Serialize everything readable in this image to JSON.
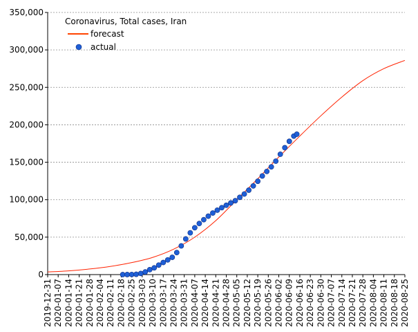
{
  "chart_data": {
    "type": "line",
    "title": "Coronavirus, Total cases, Iran",
    "xlabel": "",
    "ylabel": "",
    "x_start": "2019-12-31",
    "x_end": "2020-08-25",
    "ylim": [
      0,
      350000
    ],
    "grid": true,
    "legend_position": "top-left",
    "x_tick_labels": [
      "2019-12-31",
      "2020-01-07",
      "2020-01-14",
      "2020-01-21",
      "2020-01-28",
      "2020-02-04",
      "2020-02-11",
      "2020-02-18",
      "2020-02-25",
      "2020-03-03",
      "2020-03-10",
      "2020-03-17",
      "2020-03-24",
      "2020-03-31",
      "2020-04-07",
      "2020-04-14",
      "2020-04-21",
      "2020-04-28",
      "2020-05-05",
      "2020-05-12",
      "2020-05-19",
      "2020-05-26",
      "2020-06-02",
      "2020-06-09",
      "2020-06-16",
      "2020-06-23",
      "2020-06-30",
      "2020-07-07",
      "2020-07-14",
      "2020-07-21",
      "2020-07-28",
      "2020-08-04",
      "2020-08-11",
      "2020-08-18",
      "2020-08-25"
    ],
    "y_tick_labels": [
      "0",
      "50,000",
      "100,000",
      "150,000",
      "200,000",
      "250,000",
      "300,000",
      "350,000"
    ],
    "series": [
      {
        "name": "forecast",
        "color": "#ff2200",
        "style": "line",
        "x": [
          "2019-12-31",
          "2020-01-14",
          "2020-01-28",
          "2020-02-11",
          "2020-02-25",
          "2020-03-10",
          "2020-03-24",
          "2020-04-07",
          "2020-04-21",
          "2020-05-05",
          "2020-05-19",
          "2020-06-02",
          "2020-06-16",
          "2020-06-30",
          "2020-07-14",
          "2020-07-28",
          "2020-08-11",
          "2020-08-25"
        ],
        "values": [
          3500,
          5000,
          7500,
          11000,
          16000,
          23000,
          34000,
          50000,
          72000,
          100000,
          128000,
          157000,
          185000,
          212000,
          237000,
          259000,
          275000,
          286000
        ]
      },
      {
        "name": "actual",
        "color": "#1f5fd6",
        "style": "markers",
        "x": [
          "2020-02-19",
          "2020-02-22",
          "2020-02-25",
          "2020-02-28",
          "2020-03-02",
          "2020-03-05",
          "2020-03-08",
          "2020-03-11",
          "2020-03-14",
          "2020-03-17",
          "2020-03-20",
          "2020-03-23",
          "2020-03-26",
          "2020-03-29",
          "2020-04-01",
          "2020-04-04",
          "2020-04-07",
          "2020-04-10",
          "2020-04-13",
          "2020-04-16",
          "2020-04-19",
          "2020-04-22",
          "2020-04-25",
          "2020-04-28",
          "2020-05-01",
          "2020-05-04",
          "2020-05-07",
          "2020-05-10",
          "2020-05-13",
          "2020-05-16",
          "2020-05-19",
          "2020-05-22",
          "2020-05-25",
          "2020-05-28",
          "2020-05-31",
          "2020-06-03",
          "2020-06-06",
          "2020-06-09",
          "2020-06-12",
          "2020-06-14"
        ],
        "values": [
          2,
          43,
          139,
          388,
          1501,
          3513,
          6566,
          9000,
          12729,
          16169,
          19644,
          23049,
          29406,
          38309,
          47593,
          55743,
          62589,
          68192,
          73303,
          77995,
          82211,
          85996,
          89328,
          92584,
          95646,
          98647,
          103135,
          107603,
          112725,
          118392,
          124603,
          131652,
          137724,
          143849,
          151466,
          160696,
          169425,
          177938,
          184955,
          187427
        ]
      }
    ]
  }
}
